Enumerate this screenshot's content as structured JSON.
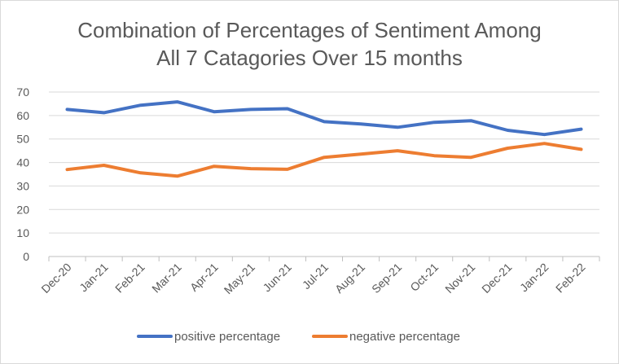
{
  "chart_data": {
    "type": "line",
    "title_lines": [
      "Combination of Percentages of Sentiment Among",
      "All 7 Catagories Over 15 months"
    ],
    "categories": [
      "Dec-20",
      "Jan-21",
      "Feb-21",
      "Mar-21",
      "Apr-21",
      "May-21",
      "Jun-21",
      "Jul-21",
      "Aug-21",
      "Sep-21",
      "Oct-21",
      "Nov-21",
      "Dec-21",
      "Jan-22",
      "Feb-22"
    ],
    "series": [
      {
        "name": "positive percentage",
        "color": "#4472C4",
        "values": [
          62.6,
          61.2,
          64.4,
          65.8,
          61.6,
          62.6,
          62.9,
          57.4,
          56.4,
          55.0,
          57.1,
          57.8,
          53.7,
          51.9,
          54.2
        ]
      },
      {
        "name": "negative percentage",
        "color": "#ED7D31",
        "values": [
          37.0,
          38.8,
          35.6,
          34.2,
          38.4,
          37.4,
          37.1,
          42.2,
          43.6,
          45.0,
          42.9,
          42.2,
          46.1,
          48.1,
          45.6
        ]
      }
    ],
    "y_ticks": [
      0,
      10,
      20,
      30,
      40,
      50,
      60,
      70
    ],
    "ylim": [
      0,
      70
    ],
    "grid": true,
    "legend_position": "bottom"
  }
}
